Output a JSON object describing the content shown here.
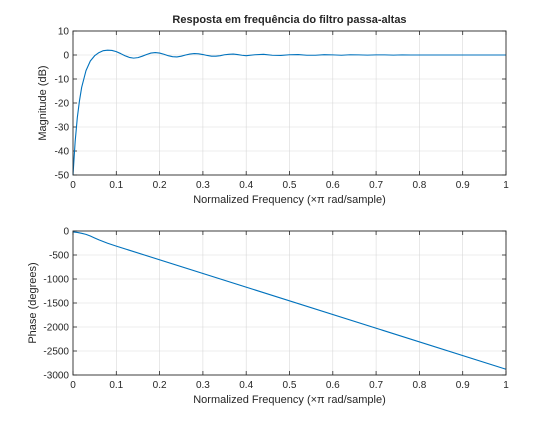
{
  "chart_data": [
    {
      "type": "line",
      "title": "Resposta em frequência do filtro passa-altas",
      "xlabel": "Normalized Frequency  (×π rad/sample)",
      "ylabel": "Magnitude (dB)",
      "xlim": [
        0,
        1
      ],
      "ylim": [
        -50,
        10
      ],
      "grid": true,
      "xticks": [
        0,
        0.1,
        0.2,
        0.3,
        0.4,
        0.5,
        0.6,
        0.7,
        0.8,
        0.9,
        1
      ],
      "xtick_labels": [
        "0",
        "0.1",
        "0.2",
        "0.3",
        "0.4",
        "0.5",
        "0.6",
        "0.7",
        "0.8",
        "0.9",
        "1"
      ],
      "yticks": [
        10,
        0,
        -10,
        -20,
        -30,
        -40,
        -50
      ],
      "ytick_labels": [
        "10",
        "0",
        "-10",
        "-20",
        "-30",
        "-40",
        "-50"
      ],
      "series": [
        {
          "color": "#0072bd",
          "x": [
            0,
            0.005,
            0.01,
            0.015,
            0.02,
            0.03,
            0.04,
            0.05,
            0.06,
            0.07,
            0.08,
            0.09,
            0.1,
            0.11,
            0.12,
            0.13,
            0.14,
            0.15,
            0.16,
            0.17,
            0.18,
            0.19,
            0.2,
            0.21,
            0.22,
            0.23,
            0.24,
            0.25,
            0.26,
            0.27,
            0.28,
            0.29,
            0.3,
            0.31,
            0.32,
            0.33,
            0.34,
            0.35,
            0.36,
            0.37,
            0.38,
            0.39,
            0.4,
            0.42,
            0.44,
            0.46,
            0.48,
            0.5,
            0.52,
            0.54,
            0.56,
            0.58,
            0.6,
            0.62,
            0.64,
            0.66,
            0.68,
            0.7,
            0.72,
            0.74,
            0.76,
            0.78,
            0.8,
            0.83,
            0.86,
            0.9,
            0.94,
            0.97,
            1
          ],
          "values": [
            -50,
            -36,
            -26,
            -19,
            -13.5,
            -6.5,
            -2.5,
            -0.3,
            1.0,
            1.8,
            2.0,
            1.9,
            1.4,
            0.6,
            -0.3,
            -1.0,
            -1.3,
            -1.1,
            -0.5,
            0.2,
            0.8,
            1.0,
            0.8,
            0.3,
            -0.3,
            -0.7,
            -0.8,
            -0.5,
            0.0,
            0.4,
            0.6,
            0.5,
            0.2,
            -0.2,
            -0.5,
            -0.5,
            -0.3,
            0.1,
            0.3,
            0.4,
            0.2,
            -0.1,
            -0.3,
            0.1,
            0.3,
            -0.1,
            -0.2,
            0.1,
            0.2,
            -0.1,
            -0.1,
            0.15,
            0.05,
            -0.1,
            0.1,
            0.05,
            -0.05,
            0.05,
            0.05,
            -0.05,
            0.05,
            0.0,
            0.0,
            0.0,
            0.0,
            0.0,
            0.0,
            0.0,
            0.0
          ]
        }
      ]
    },
    {
      "type": "line",
      "xlabel": "Normalized Frequency  (×π rad/sample)",
      "ylabel": "Phase (degrees)",
      "xlim": [
        0,
        1
      ],
      "ylim": [
        -3000,
        0
      ],
      "grid": true,
      "xticks": [
        0,
        0.1,
        0.2,
        0.3,
        0.4,
        0.5,
        0.6,
        0.7,
        0.8,
        0.9,
        1
      ],
      "xtick_labels": [
        "0",
        "0.1",
        "0.2",
        "0.3",
        "0.4",
        "0.5",
        "0.6",
        "0.7",
        "0.8",
        "0.9",
        "1"
      ],
      "yticks": [
        0,
        -500,
        -1000,
        -1500,
        -2000,
        -2500,
        -3000
      ],
      "ytick_labels": [
        "0",
        "-500",
        "-1000",
        "-1500",
        "-2000",
        "-2500",
        "-3000"
      ],
      "series": [
        {
          "color": "#0072bd",
          "x": [
            0,
            0.01,
            0.02,
            0.03,
            0.04,
            0.05,
            0.06,
            0.08,
            0.1,
            1
          ],
          "values": [
            -20,
            -30,
            -48,
            -70,
            -105,
            -145,
            -185,
            -255,
            -315,
            -2880
          ]
        }
      ]
    }
  ]
}
